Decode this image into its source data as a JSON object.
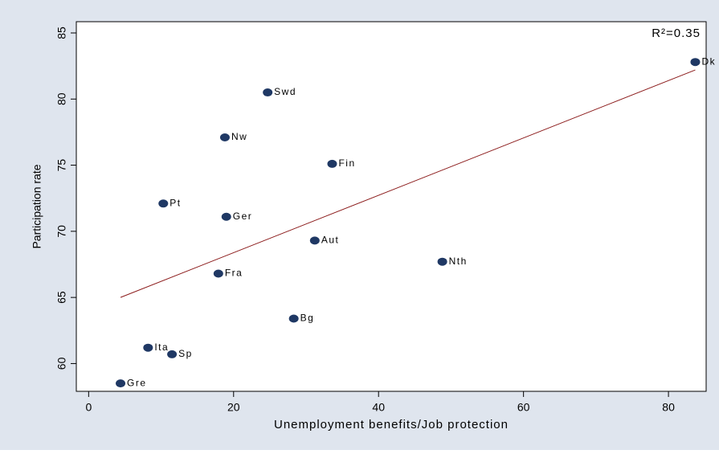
{
  "chart_data": {
    "type": "scatter",
    "xlabel": "Unemployment benefits/Job protection",
    "ylabel": "Participation rate",
    "annotation": "R²=0.35",
    "labels": [
      "Gre",
      "Ita",
      "Sp",
      "Pt",
      "Fra",
      "Nw",
      "Ger",
      "Swd",
      "Bg",
      "Aut",
      "Fin",
      "Nth",
      "Dk"
    ],
    "x": [
      4.4,
      8.2,
      11.5,
      10.3,
      17.9,
      18.8,
      19.0,
      24.7,
      28.3,
      31.2,
      33.6,
      48.8,
      83.7
    ],
    "values": [
      58.5,
      61.2,
      60.7,
      72.1,
      66.8,
      77.1,
      71.1,
      80.5,
      63.4,
      69.3,
      75.1,
      67.7,
      82.8
    ],
    "color": "#1f3864",
    "fit": {
      "x": [
        4.4,
        83.7
      ],
      "values": [
        65.0,
        82.2
      ],
      "color": "#8b1a1a"
    },
    "xlim": [
      -1.7,
      85.2
    ],
    "ylim": [
      57.9,
      85.85
    ],
    "xticks": [
      0,
      20,
      40,
      60,
      80
    ],
    "yticks": [
      60,
      65,
      70,
      75,
      80,
      85
    ],
    "grid": false
  }
}
